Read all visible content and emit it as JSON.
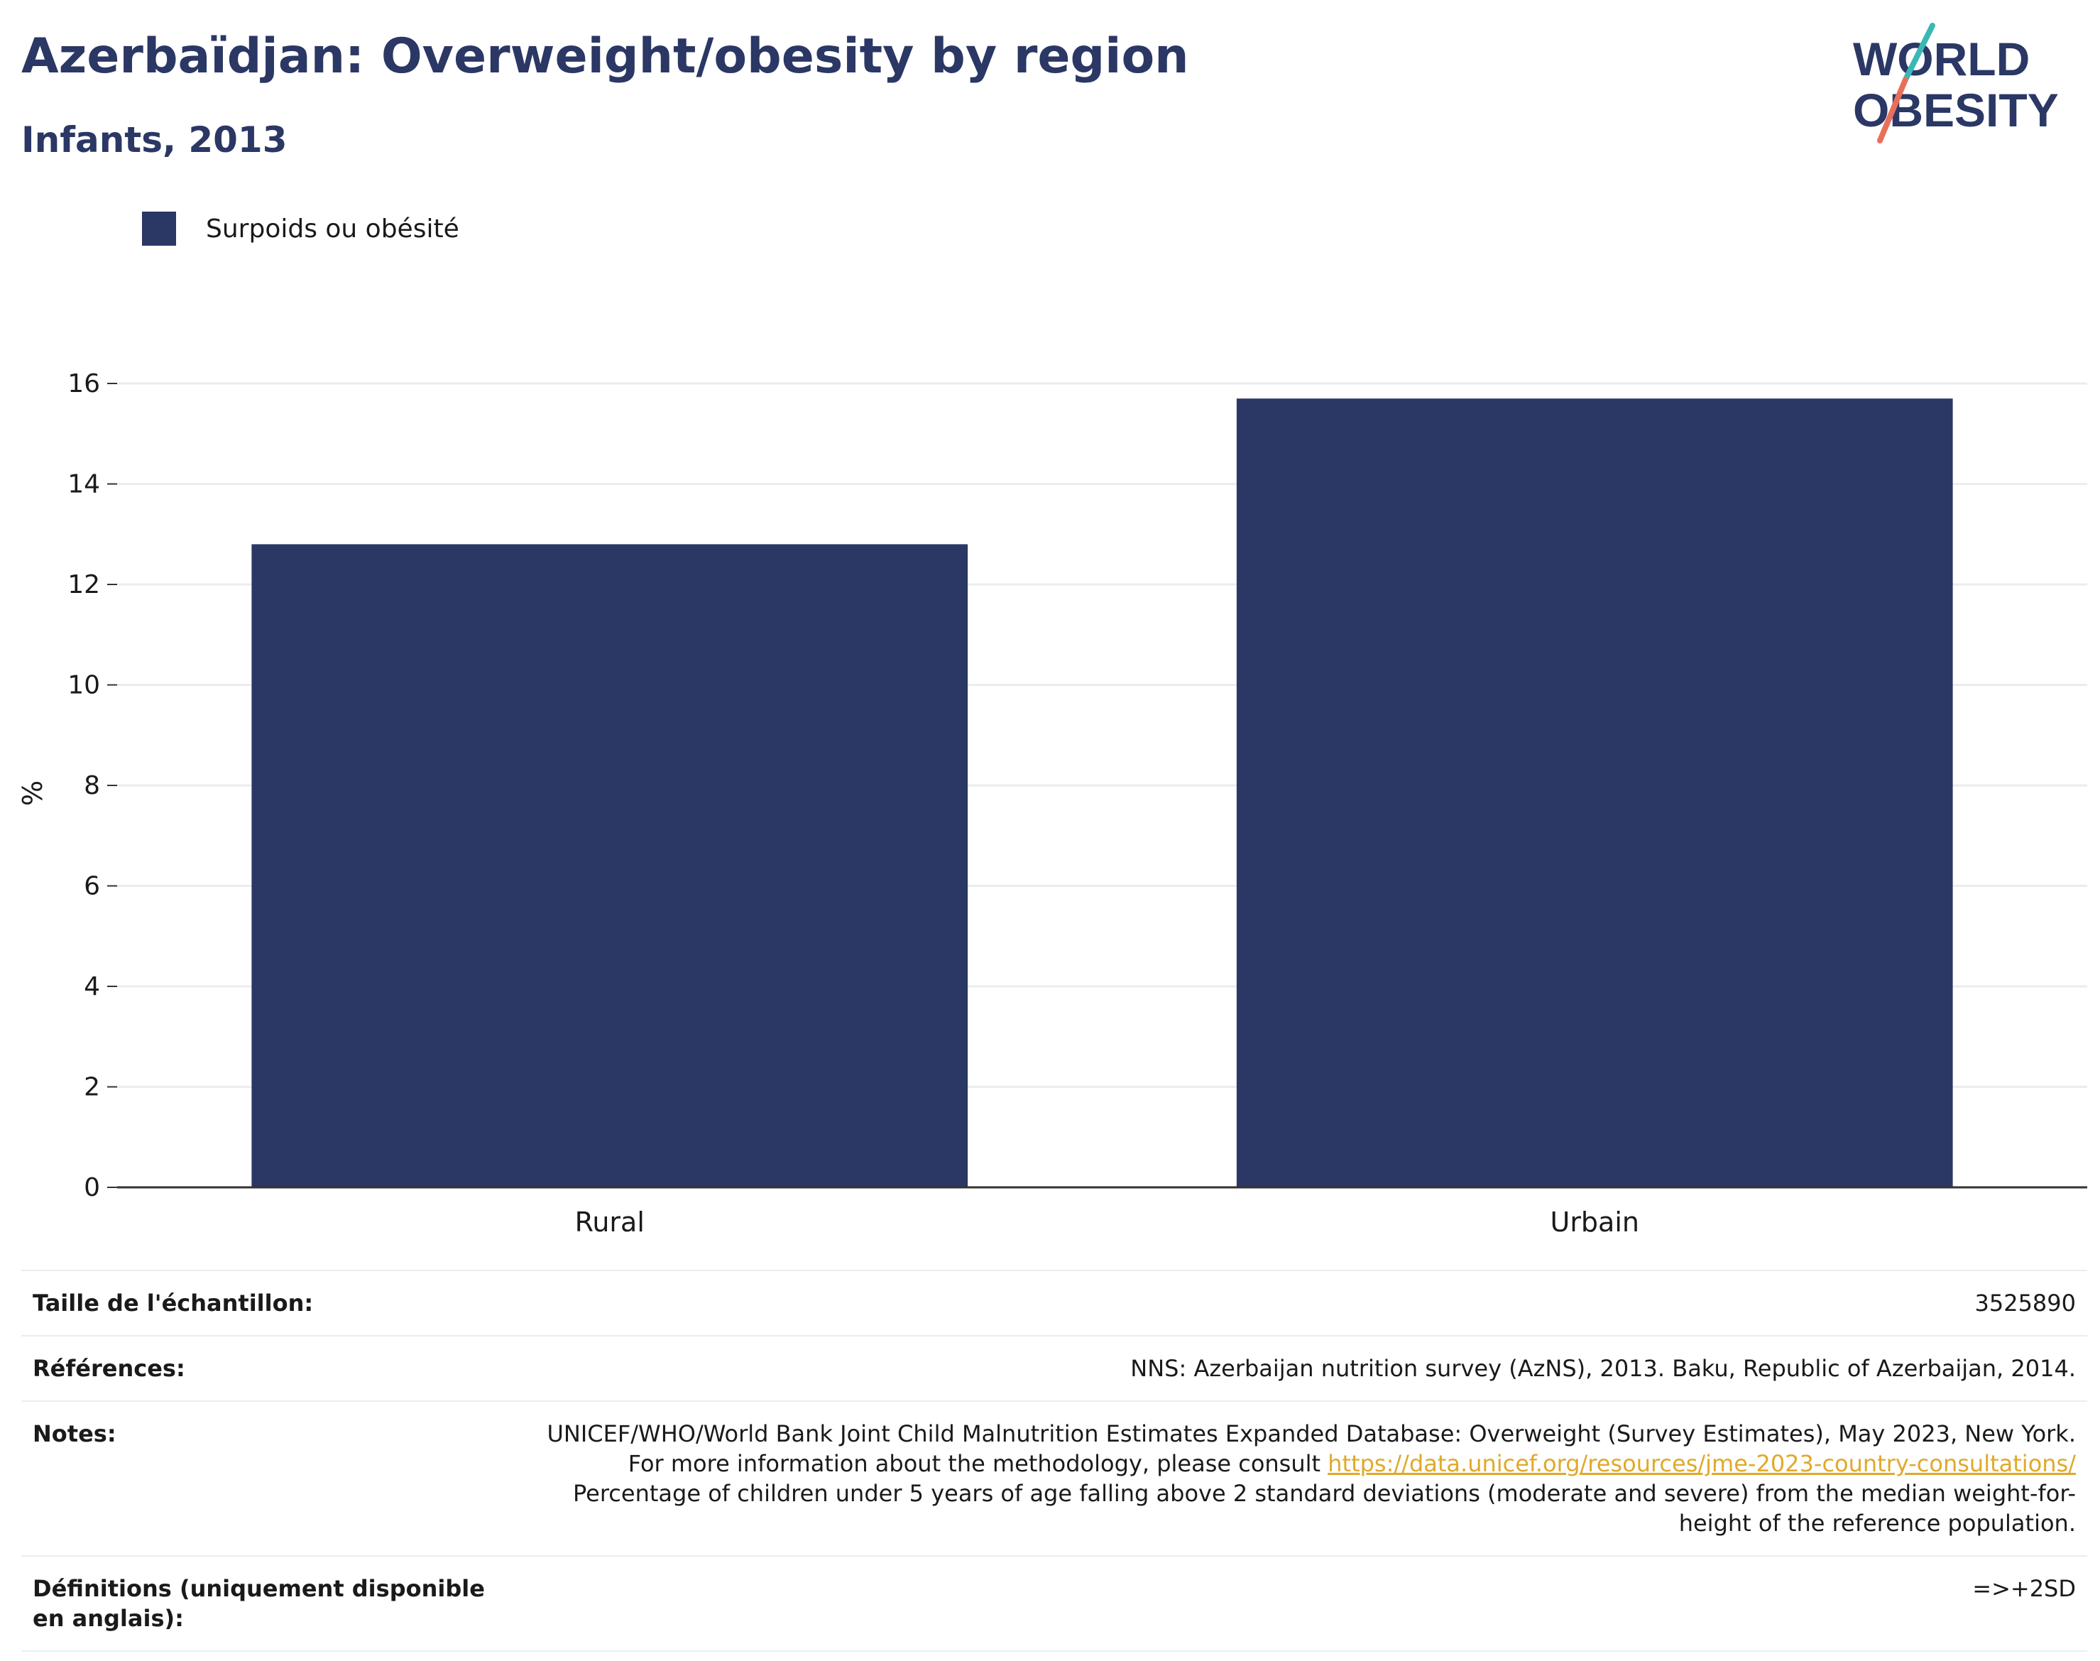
{
  "header": {
    "title": "Azerbaïdjan: Overweight/obesity by region",
    "subtitle": "Infants, 2013"
  },
  "logo": {
    "line1": "WORLD",
    "line2": "OBESITY"
  },
  "chart_data": {
    "type": "bar",
    "categories": [
      "Rural",
      "Urbain"
    ],
    "series": [
      {
        "name": "Surpoids ou obésité",
        "values": [
          12.8,
          15.7
        ],
        "color": "#2b3764"
      }
    ],
    "ylabel": "%",
    "ylim": [
      0,
      16
    ],
    "yticks": [
      0,
      2,
      4,
      6,
      8,
      10,
      12,
      14,
      16
    ],
    "grid": true,
    "legend": "top-left"
  },
  "info": {
    "sample_label": "Taille de l'échantillon:",
    "sample_value": "3525890",
    "references_label": "Références:",
    "references_value": "NNS: Azerbaijan nutrition survey (AzNS), 2013. Baku, Republic of Azerbaijan, 2014.",
    "notes_label": "Notes:",
    "notes_line1": "UNICEF/WHO/World Bank Joint Child Malnutrition Estimates Expanded Database: Overweight (Survey Estimates), May 2023, New York. For more information about the methodology, please consult",
    "notes_link": "https://data.unicef.org/resources/jme-2023-country-consultations/",
    "notes_line2": "Percentage of children under 5 years of age falling above 2 standard deviations (moderate and severe) from the median weight-for-height of the reference population.",
    "definitions_label": "Définitions (uniquement disponible en anglais):",
    "definitions_value": "=>+2SD"
  }
}
